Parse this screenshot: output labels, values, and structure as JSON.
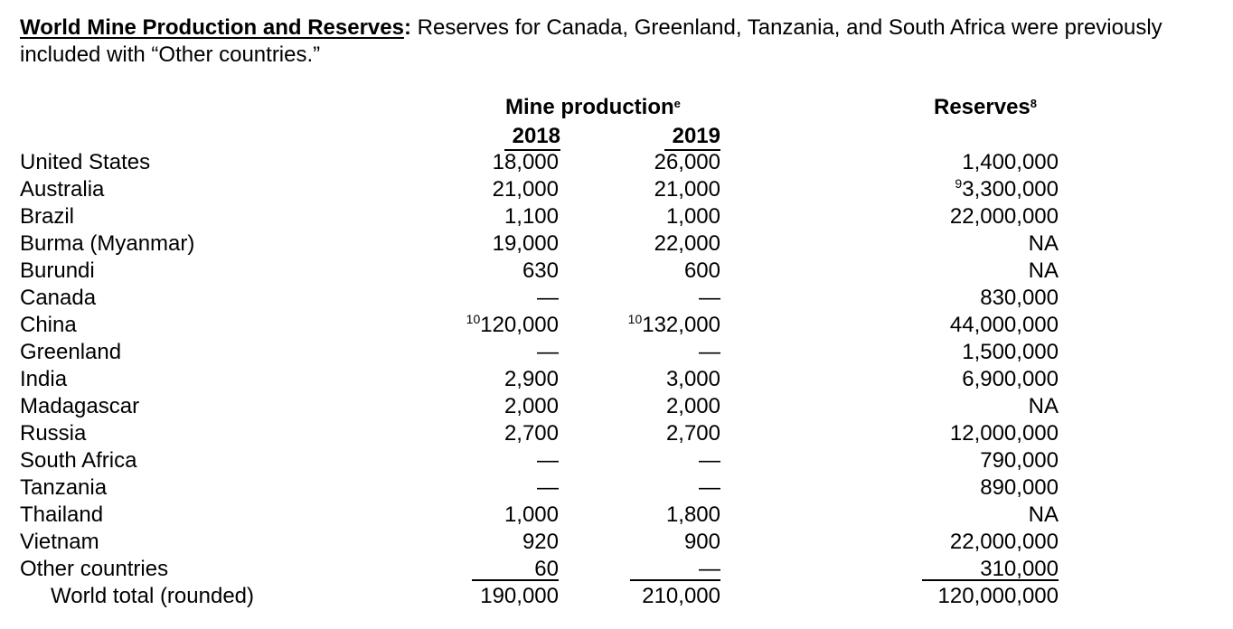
{
  "heading": {
    "lead": "World Mine Production and Reserves",
    "colon": ":",
    "text": " Reserves for Canada, Greenland, Tanzania, and South Africa were previously included with “Other countries.”"
  },
  "columns": {
    "mine_production": "Mine production",
    "mine_production_sup": "e",
    "year_2018": "2018",
    "year_2019": "2019",
    "reserves": "Reserves",
    "reserves_sup": "8"
  },
  "rows": [
    {
      "country": "United States",
      "y2018_fn": "",
      "y2018": "18,000",
      "y2019_fn": "",
      "y2019": "26,000",
      "reserves_fn": "",
      "reserves": "1,400,000"
    },
    {
      "country": "Australia",
      "y2018_fn": "",
      "y2018": "21,000",
      "y2019_fn": "",
      "y2019": "21,000",
      "reserves_fn": "9",
      "reserves": "3,300,000"
    },
    {
      "country": "Brazil",
      "y2018_fn": "",
      "y2018": "1,100",
      "y2019_fn": "",
      "y2019": "1,000",
      "reserves_fn": "",
      "reserves": "22,000,000"
    },
    {
      "country": "Burma (Myanmar)",
      "y2018_fn": "",
      "y2018": "19,000",
      "y2019_fn": "",
      "y2019": "22,000",
      "reserves_fn": "",
      "reserves": "NA"
    },
    {
      "country": "Burundi",
      "y2018_fn": "",
      "y2018": "630",
      "y2019_fn": "",
      "y2019": "600",
      "reserves_fn": "",
      "reserves": "NA"
    },
    {
      "country": "Canada",
      "y2018_fn": "",
      "y2018": "—",
      "y2019_fn": "",
      "y2019": "—",
      "reserves_fn": "",
      "reserves": "830,000"
    },
    {
      "country": "China",
      "y2018_fn": "10",
      "y2018": "120,000",
      "y2019_fn": "10",
      "y2019": "132,000",
      "reserves_fn": "",
      "reserves": "44,000,000"
    },
    {
      "country": "Greenland",
      "y2018_fn": "",
      "y2018": "—",
      "y2019_fn": "",
      "y2019": "—",
      "reserves_fn": "",
      "reserves": "1,500,000"
    },
    {
      "country": "India",
      "y2018_fn": "",
      "y2018": "2,900",
      "y2019_fn": "",
      "y2019": "3,000",
      "reserves_fn": "",
      "reserves": "6,900,000"
    },
    {
      "country": "Madagascar",
      "y2018_fn": "",
      "y2018": "2,000",
      "y2019_fn": "",
      "y2019": "2,000",
      "reserves_fn": "",
      "reserves": "NA"
    },
    {
      "country": "Russia",
      "y2018_fn": "",
      "y2018": "2,700",
      "y2019_fn": "",
      "y2019": "2,700",
      "reserves_fn": "",
      "reserves": "12,000,000"
    },
    {
      "country": "South Africa",
      "y2018_fn": "",
      "y2018": "—",
      "y2019_fn": "",
      "y2019": "—",
      "reserves_fn": "",
      "reserves": "790,000"
    },
    {
      "country": "Tanzania",
      "y2018_fn": "",
      "y2018": "—",
      "y2019_fn": "",
      "y2019": "—",
      "reserves_fn": "",
      "reserves": "890,000"
    },
    {
      "country": "Thailand",
      "y2018_fn": "",
      "y2018": "1,000",
      "y2019_fn": "",
      "y2019": "1,800",
      "reserves_fn": "",
      "reserves": "NA"
    },
    {
      "country": "Vietnam",
      "y2018_fn": "",
      "y2018": "920",
      "y2019_fn": "",
      "y2019": "900",
      "reserves_fn": "",
      "reserves": "22,000,000"
    },
    {
      "country": "Other countries",
      "y2018_fn": "",
      "y2018": "60",
      "y2019_fn": "",
      "y2019": "—",
      "reserves_fn": "",
      "reserves": "310,000"
    }
  ],
  "total": {
    "country": "World total (rounded)",
    "y2018": "190,000",
    "y2019": "210,000",
    "reserves": "120,000,000"
  }
}
